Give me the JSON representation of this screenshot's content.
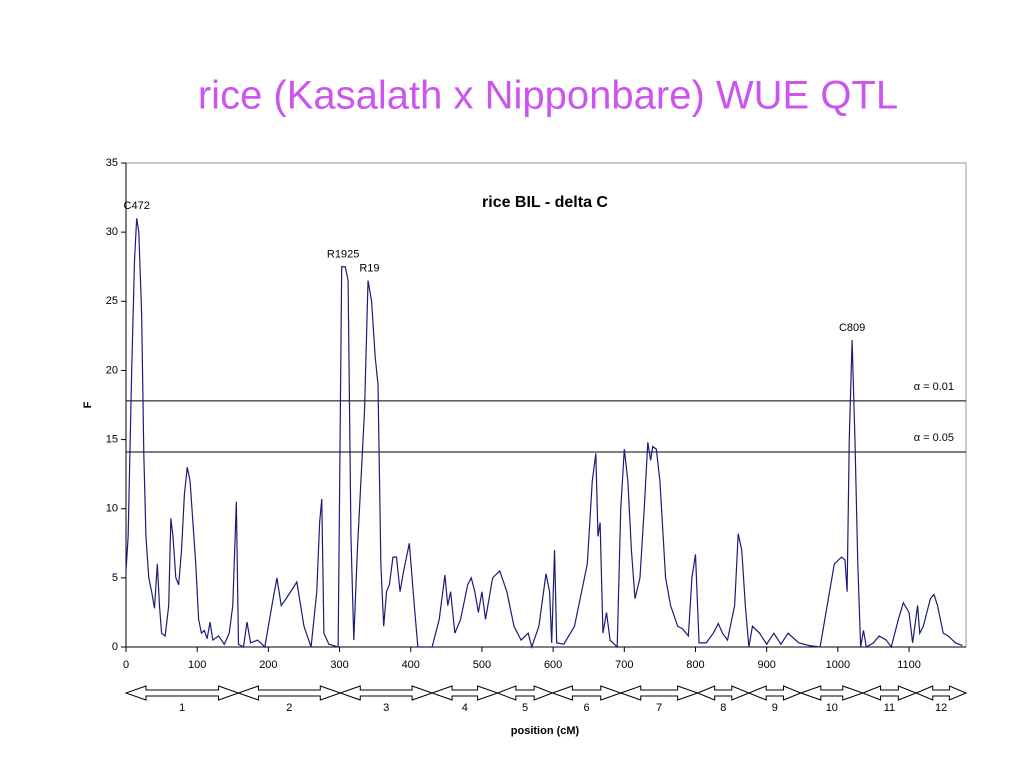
{
  "chart_data": {
    "type": "line",
    "heading": "rice (Kasalath x Nipponbare) WUE QTL",
    "title": "rice BIL - delta C",
    "xlabel": "position (cM)",
    "ylabel": "F",
    "xlim": [
      0,
      1180
    ],
    "ylim": [
      0,
      35
    ],
    "xticks": [
      0,
      100,
      200,
      300,
      400,
      500,
      600,
      700,
      800,
      900,
      1000,
      1100
    ],
    "yticks": [
      0,
      5,
      10,
      15,
      20,
      25,
      30,
      35
    ],
    "x": [
      0,
      3,
      8,
      12,
      15,
      18,
      22,
      25,
      28,
      32,
      36,
      40,
      44,
      47,
      50,
      55,
      60,
      63,
      66,
      70,
      74,
      78,
      82,
      86,
      90,
      94,
      98,
      102,
      106,
      110,
      114,
      118,
      122,
      130,
      138,
      145,
      150,
      155,
      158,
      165,
      170,
      175,
      185,
      195,
      205,
      212,
      218,
      225,
      240,
      250,
      260,
      268,
      272,
      275,
      278,
      285,
      298,
      303,
      308,
      312,
      316,
      320,
      325,
      330,
      335,
      340,
      345,
      350,
      354,
      358,
      362,
      366,
      370,
      375,
      380,
      385,
      390,
      398,
      405,
      410,
      430,
      440,
      448,
      452,
      456,
      462,
      470,
      480,
      485,
      490,
      495,
      500,
      505,
      515,
      525,
      535,
      545,
      555,
      565,
      570,
      580,
      590,
      595,
      598,
      602,
      605,
      615,
      630,
      640,
      648,
      655,
      660,
      663,
      666,
      670,
      675,
      680,
      690,
      695,
      700,
      705,
      710,
      715,
      722,
      728,
      733,
      737,
      740,
      745,
      750,
      758,
      765,
      775,
      782,
      790,
      795,
      800,
      805,
      815,
      825,
      832,
      838,
      845,
      855,
      860,
      865,
      870,
      875,
      880,
      890,
      900,
      910,
      920,
      930,
      945,
      960,
      975,
      985,
      995,
      1005,
      1010,
      1013,
      1016,
      1020,
      1024,
      1028,
      1032,
      1036,
      1040,
      1050,
      1058,
      1068,
      1075,
      1085,
      1092,
      1100,
      1105,
      1112,
      1115,
      1120,
      1130,
      1135,
      1140,
      1148,
      1155,
      1165,
      1175
    ],
    "series": [
      {
        "color": "#1c1c78",
        "values": [
          5.5,
          8,
          20,
          28,
          31,
          30,
          24,
          14,
          8,
          5,
          4,
          2.8,
          6,
          3,
          1,
          0.8,
          3,
          9.3,
          8,
          5,
          4.5,
          7,
          11,
          13,
          12,
          9,
          6,
          2,
          1,
          1.2,
          0.6,
          1.8,
          0.5,
          0.8,
          0.2,
          1,
          3,
          10.5,
          0.2,
          0,
          1.8,
          0.3,
          0.5,
          0,
          3,
          5,
          3,
          3.5,
          4.7,
          1.5,
          0,
          4,
          9,
          10.7,
          1,
          0.2,
          0,
          27.5,
          27.5,
          26.5,
          8,
          0.5,
          7,
          12,
          17,
          26.5,
          25,
          21,
          19,
          6,
          1.5,
          4,
          4.5,
          6.5,
          6.5,
          4,
          5.5,
          7.5,
          3,
          0,
          0,
          2,
          5.2,
          3,
          4,
          1,
          2,
          4.5,
          5,
          4,
          2.5,
          4,
          2,
          5,
          5.5,
          4,
          1.5,
          0.5,
          1,
          0,
          1.5,
          5.3,
          4,
          0.3,
          7,
          0.3,
          0.2,
          1.5,
          4,
          6,
          12,
          14,
          8,
          9,
          1,
          2.5,
          0.5,
          0,
          10,
          14.3,
          12,
          7,
          3.5,
          5,
          10,
          14.8,
          13.5,
          14.5,
          14.3,
          12,
          5,
          3,
          1.5,
          1.3,
          0.8,
          5,
          6.7,
          0.3,
          0.3,
          1,
          1.7,
          1,
          0.5,
          3,
          8.2,
          7,
          3,
          0,
          1.5,
          1,
          0.2,
          1,
          0.2,
          1,
          0.3,
          0.1,
          0,
          3,
          6,
          6.5,
          6.3,
          4,
          15,
          22.2,
          15,
          6,
          0,
          1.2,
          0,
          0.3,
          0.8,
          0.5,
          0,
          2,
          3.2,
          2.5,
          0.3,
          3,
          1,
          1.5,
          3.5,
          3.8,
          3,
          1,
          0.8,
          0.3,
          0.1
        ]
      }
    ],
    "thresholds": [
      {
        "label": "α = 0.01",
        "value": 17.8
      },
      {
        "label": "α = 0.05",
        "value": 14.1
      }
    ],
    "annotations": [
      {
        "text": "C472",
        "x": 15,
        "y": 31
      },
      {
        "text": "R1925",
        "x": 305,
        "y": 27.5
      },
      {
        "text": "R19",
        "x": 342,
        "y": 26.5
      },
      {
        "text": "C809",
        "x": 1020,
        "y": 22.2
      }
    ],
    "chromosomes": [
      "1",
      "2",
      "3",
      "4",
      "5",
      "6",
      "7",
      "8",
      "9",
      "10",
      "11",
      "12"
    ],
    "chromosome_bounds": [
      0,
      158,
      301,
      430,
      522,
      599,
      695,
      803,
      875,
      948,
      1035,
      1110,
      1180
    ]
  }
}
